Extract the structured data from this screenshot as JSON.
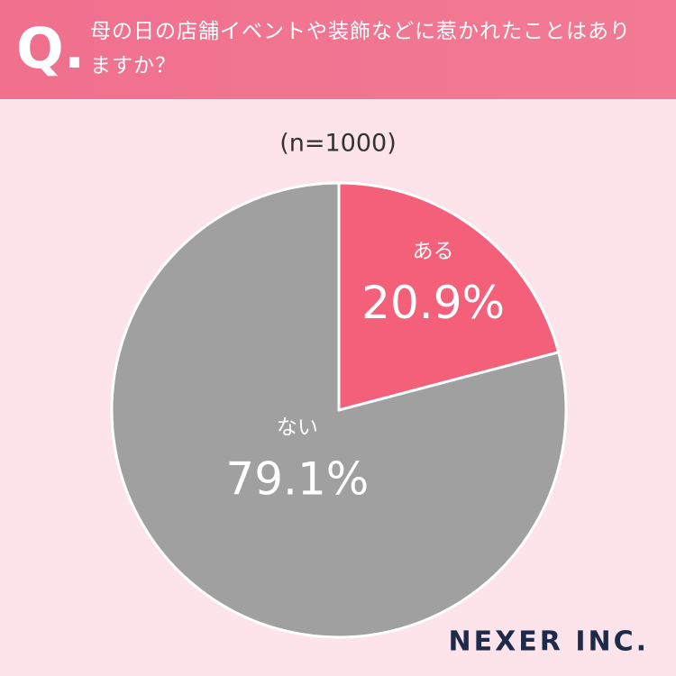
{
  "header": {
    "marker": "Q."
  },
  "chart_data": {
    "type": "pie",
    "title": "母の日の店舗イベントや装飾などに惹かれたことはありますか？",
    "subtitle": "(n=1000)",
    "categories": [
      "ある",
      "ない"
    ],
    "values": [
      20.9,
      79.1
    ],
    "value_labels": [
      "20.9%",
      "79.1%"
    ],
    "colors": [
      "#f4607a",
      "#a0a0a0"
    ]
  },
  "footer": {
    "brand": "NEXER INC."
  }
}
